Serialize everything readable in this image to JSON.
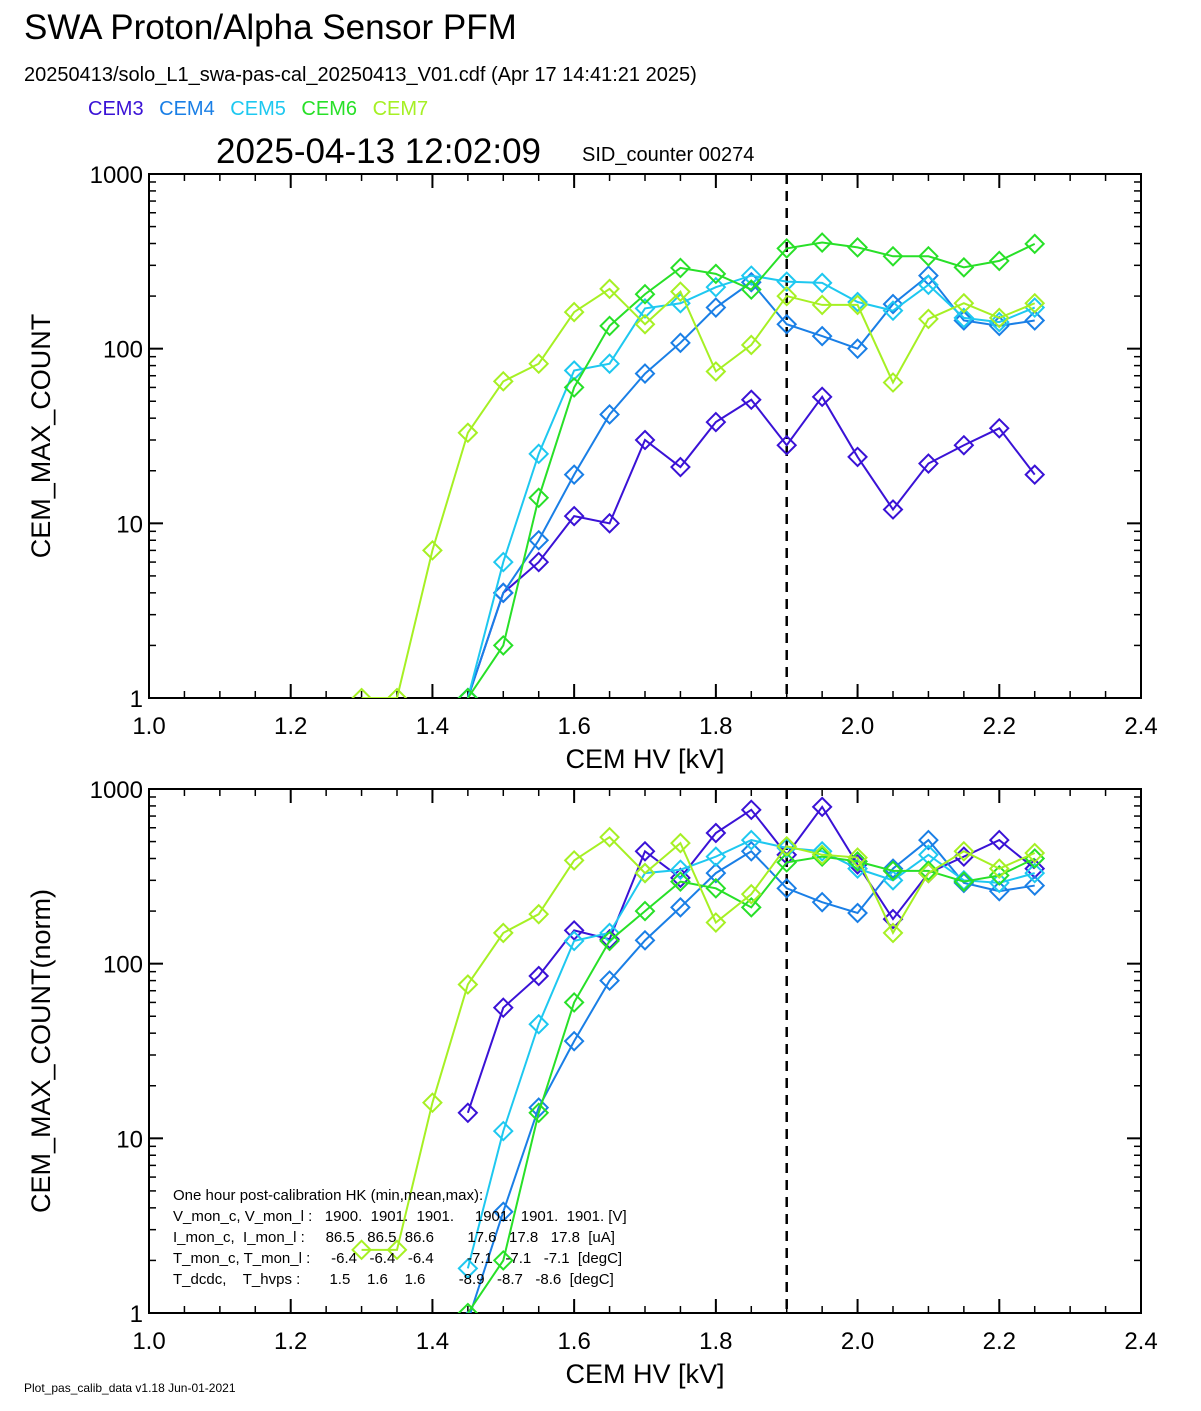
{
  "title": "SWA Proton/Alpha Sensor PFM",
  "subtitle": "20250413/solo_L1_swa-pas-cal_20250413_V01.cdf  (Apr 17 14:41:21 2025)",
  "datetime": "2025-04-13 12:02:09",
  "sid_counter": "SID_counter 00274",
  "footer": "Plot_pas_calib_data v1.18 Jun-01-2021",
  "colors": {
    "CEM3": "#3a12d6",
    "CEM4": "#1a7fe6",
    "CEM5": "#1ec8f0",
    "CEM6": "#28e028",
    "CEM7": "#a6f024"
  },
  "hk_box": {
    "heading": "One hour post-calibration HK (min,mean,max):",
    "rows": [
      "V_mon_c, V_mon_l :   1900.  1901.  1901.     1901.  1901.  1901. [V]",
      "I_mon_c,  I_mon_l :     86.5   86.5  86.6        17.6   17.8   17.8  [uA]",
      "T_mon_c, T_mon_l :     -6.4   -6.4   -6.4        -7.1   -7.1   -7.1  [degC]",
      "T_dcdc,    T_hvps :       1.5    1.6    1.6        -8.9   -8.7   -8.6  [degC]"
    ]
  },
  "chart_data": [
    {
      "type": "line",
      "xlabel": "CEM HV [kV]",
      "ylabel": "CEM_MAX_COUNT",
      "xlim": [
        1.0,
        2.4
      ],
      "ylim": [
        1,
        1000
      ],
      "yscale": "log",
      "xticks": [
        "1.0",
        "1.2",
        "1.4",
        "1.6",
        "1.8",
        "2.0",
        "2.2",
        "2.4"
      ],
      "yticks": [
        "1",
        "10",
        "100",
        "1000"
      ],
      "vline_x": 1.9,
      "series": [
        {
          "name": "CEM3",
          "x": [
            1.45,
            1.5,
            1.55,
            1.6,
            1.65,
            1.7,
            1.75,
            1.8,
            1.85,
            1.9,
            1.95,
            2.0,
            2.05,
            2.1,
            2.15,
            2.2,
            2.25
          ],
          "values": [
            1,
            4,
            6,
            11,
            10,
            30,
            21,
            38,
            51,
            28,
            53,
            24,
            12,
            22,
            28,
            35,
            19
          ]
        },
        {
          "name": "CEM4",
          "x": [
            1.45,
            1.5,
            1.55,
            1.6,
            1.65,
            1.7,
            1.75,
            1.8,
            1.85,
            1.9,
            1.95,
            2.0,
            2.05,
            2.1,
            2.15,
            2.2,
            2.25
          ],
          "values": [
            1,
            4,
            8,
            19,
            42,
            72,
            108,
            172,
            240,
            138,
            118,
            100,
            180,
            262,
            145,
            135,
            145
          ]
        },
        {
          "name": "CEM5",
          "x": [
            1.45,
            1.5,
            1.55,
            1.6,
            1.65,
            1.7,
            1.75,
            1.8,
            1.85,
            1.9,
            1.95,
            2.0,
            2.05,
            2.1,
            2.15,
            2.2,
            2.25
          ],
          "values": [
            1,
            6,
            25,
            75,
            82,
            170,
            182,
            225,
            262,
            242,
            238,
            185,
            165,
            232,
            150,
            142,
            172
          ]
        },
        {
          "name": "CEM6",
          "x": [
            1.45,
            1.5,
            1.55,
            1.6,
            1.65,
            1.7,
            1.75,
            1.8,
            1.85,
            1.9,
            1.95,
            2.0,
            2.05,
            2.1,
            2.15,
            2.2,
            2.25
          ],
          "values": [
            1,
            2,
            14,
            60,
            135,
            205,
            290,
            268,
            218,
            375,
            405,
            380,
            338,
            338,
            292,
            318,
            398
          ]
        },
        {
          "name": "CEM7",
          "x": [
            1.3,
            1.35,
            1.4,
            1.45,
            1.5,
            1.55,
            1.6,
            1.65,
            1.7,
            1.75,
            1.8,
            1.85,
            1.9,
            1.95,
            2.0,
            2.05,
            2.1,
            2.15,
            2.2,
            2.25
          ],
          "values": [
            1,
            1,
            7,
            33,
            65,
            82,
            162,
            220,
            138,
            212,
            74,
            105,
            200,
            178,
            178,
            64,
            148,
            182,
            150,
            182
          ]
        }
      ]
    },
    {
      "type": "line",
      "xlabel": "CEM HV [kV]",
      "ylabel": "CEM_MAX_COUNT(norm)",
      "xlim": [
        1.0,
        2.4
      ],
      "ylim": [
        1,
        1000
      ],
      "yscale": "log",
      "xticks": [
        "1.0",
        "1.2",
        "1.4",
        "1.6",
        "1.8",
        "2.0",
        "2.2",
        "2.4"
      ],
      "yticks": [
        "1",
        "10",
        "100",
        "1000"
      ],
      "vline_x": 1.9,
      "series": [
        {
          "name": "CEM3",
          "x": [
            1.45,
            1.5,
            1.55,
            1.6,
            1.65,
            1.7,
            1.75,
            1.8,
            1.85,
            1.9,
            1.95,
            2.0,
            2.05,
            2.1,
            2.15,
            2.2,
            2.25
          ],
          "values": [
            14,
            56,
            85,
            155,
            138,
            440,
            310,
            560,
            760,
            420,
            790,
            370,
            180,
            330,
            410,
            510,
            350
          ]
        },
        {
          "name": "CEM4",
          "x": [
            1.45,
            1.5,
            1.55,
            1.6,
            1.65,
            1.7,
            1.75,
            1.8,
            1.85,
            1.9,
            1.95,
            2.0,
            2.05,
            2.1,
            2.15,
            2.2,
            2.25
          ],
          "values": [
            0.9,
            3.8,
            15,
            36,
            80,
            136,
            210,
            330,
            440,
            270,
            225,
            195,
            350,
            510,
            290,
            260,
            280
          ]
        },
        {
          "name": "CEM5",
          "x": [
            1.45,
            1.5,
            1.55,
            1.6,
            1.65,
            1.7,
            1.75,
            1.8,
            1.85,
            1.9,
            1.95,
            2.0,
            2.05,
            2.1,
            2.15,
            2.2,
            2.25
          ],
          "values": [
            1.8,
            11,
            45,
            135,
            150,
            330,
            345,
            410,
            510,
            460,
            440,
            350,
            300,
            420,
            300,
            290,
            330
          ]
        },
        {
          "name": "CEM6",
          "x": [
            1.45,
            1.5,
            1.55,
            1.6,
            1.65,
            1.7,
            1.75,
            1.8,
            1.85,
            1.9,
            1.95,
            2.0,
            2.05,
            2.1,
            2.15,
            2.2,
            2.25
          ],
          "values": [
            1,
            2,
            14,
            60,
            135,
            200,
            295,
            270,
            210,
            380,
            410,
            385,
            340,
            340,
            295,
            320,
            400
          ]
        },
        {
          "name": "CEM7",
          "x": [
            1.3,
            1.35,
            1.4,
            1.45,
            1.5,
            1.55,
            1.6,
            1.65,
            1.7,
            1.75,
            1.8,
            1.85,
            1.9,
            1.95,
            2.0,
            2.05,
            2.1,
            2.15,
            2.2,
            2.25
          ],
          "values": [
            2.3,
            2.3,
            16,
            76,
            150,
            192,
            390,
            530,
            330,
            490,
            172,
            250,
            470,
            420,
            405,
            150,
            330,
            440,
            350,
            430
          ]
        }
      ]
    }
  ]
}
